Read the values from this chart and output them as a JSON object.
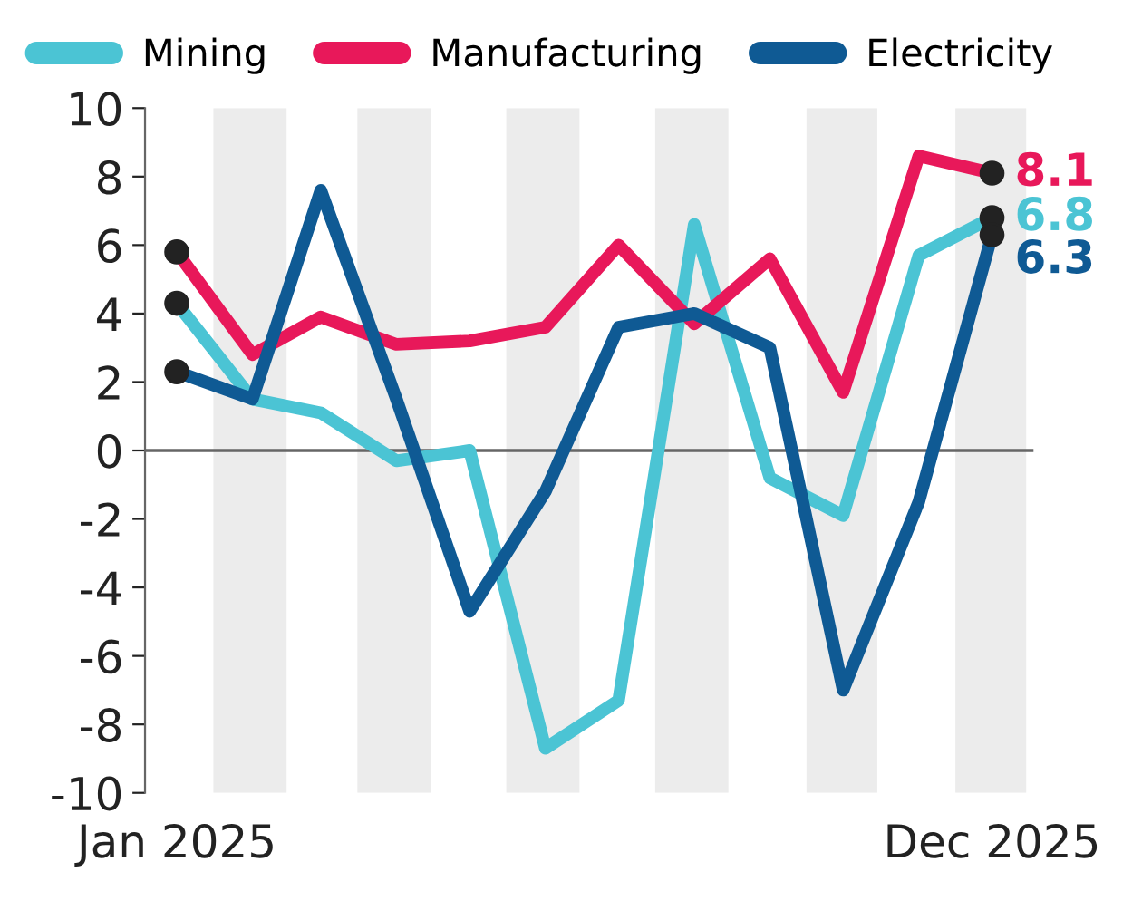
{
  "chart_data": {
    "type": "line",
    "x": [
      "2025-01",
      "2025-02",
      "2025-03",
      "2025-04",
      "2025-05",
      "2025-06",
      "2025-07",
      "2025-08",
      "2025-09",
      "2025-10",
      "2025-11",
      "2025-12"
    ],
    "series": [
      {
        "name": "Mining",
        "color": "#4bc4d4",
        "values": [
          4.3,
          1.5,
          1.1,
          -0.3,
          0,
          -8.7,
          -7.3,
          6.6,
          -0.8,
          -1.9,
          5.7,
          6.8
        ],
        "value_labels": [
          null,
          null,
          null,
          null,
          null,
          null,
          null,
          null,
          null,
          null,
          null,
          "6.8"
        ]
      },
      {
        "name": "Manufacturing",
        "color": "#e8185a",
        "values": [
          5.8,
          2.8,
          3.9,
          3.1,
          3.2,
          3.6,
          6.0,
          3.7,
          5.6,
          1.7,
          8.6,
          8.1
        ],
        "value_labels": [
          null,
          null,
          null,
          null,
          null,
          null,
          null,
          null,
          null,
          null,
          null,
          "8.1"
        ]
      },
      {
        "name": "Electricity",
        "color": "#0f5a94",
        "values": [
          2.3,
          1.5,
          7.6,
          1.5,
          -4.7,
          -1.2,
          3.6,
          4.0,
          3.0,
          -7.0,
          -1.5,
          6.3
        ],
        "value_labels": [
          null,
          null,
          null,
          null,
          null,
          null,
          null,
          null,
          null,
          null,
          null,
          "6.3"
        ]
      }
    ],
    "xlim": [
      "2024-12-19",
      "2025-12-18"
    ],
    "xticks": [
      {
        "value": "2025-01",
        "label": "Jan 2025"
      },
      {
        "value": "2025-12",
        "label": "Dec 2025"
      }
    ],
    "ylim": [
      -10,
      10
    ],
    "yticks": [
      -10,
      -8,
      -6,
      -4,
      -2,
      0,
      2,
      4,
      6,
      8,
      10
    ],
    "bands": [
      {
        "axis": "x",
        "from": "2025-01-16",
        "to": "2025-02-15",
        "color": "#ececec"
      },
      {
        "axis": "x",
        "from": "2025-03-16",
        "to": "2025-04-15",
        "color": "#ececec"
      },
      {
        "axis": "x",
        "from": "2025-05-16",
        "to": "2025-06-15",
        "color": "#ececec"
      },
      {
        "axis": "x",
        "from": "2025-07-16",
        "to": "2025-08-15",
        "color": "#ececec"
      },
      {
        "axis": "x",
        "from": "2025-09-16",
        "to": "2025-10-15",
        "color": "#ececec"
      },
      {
        "axis": "x",
        "from": "2025-11-16",
        "to": "2025-12-15",
        "color": "#ececec"
      }
    ],
    "ref_lines": [
      {
        "axis": "y",
        "value": 0,
        "color": "#666666"
      }
    ],
    "grid": false,
    "legend": "top"
  }
}
